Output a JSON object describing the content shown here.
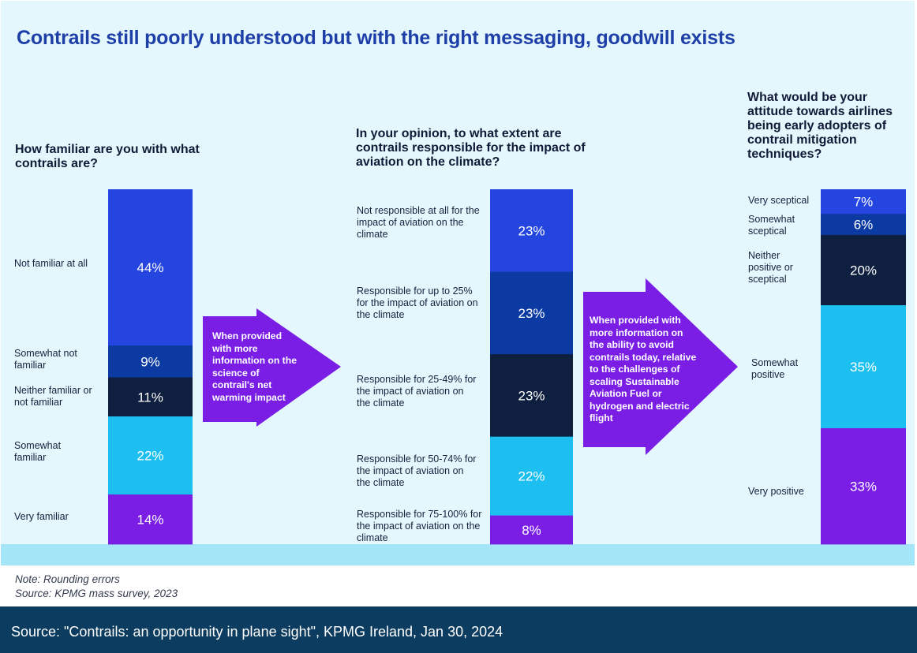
{
  "page": {
    "title": "Contrails still poorly understood but with the right messaging, goodwill exists",
    "arrow1_text": "When provided with more information on the science of contrail's net warming impact",
    "arrow2_text": "When provided with more information on the ability to avoid contrails today, relative to the challenges of scaling Sustainable Aviation Fuel or hydrogen and electric flight",
    "note": "Note: Rounding errors",
    "source_note": "Source: KPMG mass survey, 2023",
    "footer": "Source: \"Contrails: an opportunity in plane sight\", KPMG Ireland, Jan 30, 2024"
  },
  "chart_data": [
    {
      "type": "bar",
      "stacked": true,
      "title": "How familiar are you with what contrails are?",
      "categories": [
        "Not familiar at all",
        "Somewhat not familiar",
        "Neither familiar or not familiar",
        "Somewhat familiar",
        "Very familiar"
      ],
      "values": [
        44,
        9,
        11,
        22,
        14
      ],
      "data_labels": [
        "44%",
        "9%",
        "11%",
        "22%",
        "14%"
      ],
      "colors": [
        "#2545e0",
        "#0c3aa3",
        "#0f1f3f",
        "#1dbff0",
        "#7a1ee6"
      ]
    },
    {
      "type": "bar",
      "stacked": true,
      "title": "In your opinion, to what extent are contrails responsible for the impact of aviation on the climate?",
      "categories": [
        "Not responsible at all for the impact of aviation on the climate",
        "Responsible for up to 25% for the impact of aviation on the climate",
        "Responsible for 25-49% for the impact of aviation on the climate",
        "Responsible for 50-74% for the impact of aviation on the climate",
        "Responsible for 75-100% for the impact of aviation on the climate"
      ],
      "values": [
        23,
        23,
        23,
        22,
        8
      ],
      "data_labels": [
        "23%",
        "23%",
        "23%",
        "22%",
        "8%"
      ],
      "colors": [
        "#2545e0",
        "#0c3aa3",
        "#0f1f3f",
        "#1dbff0",
        "#7a1ee6"
      ]
    },
    {
      "type": "bar",
      "stacked": true,
      "title": "What would be your attitude towards airlines being early adopters of contrail mitigation techniques?",
      "categories": [
        "Very sceptical",
        "Somewhat sceptical",
        "Neither positive or sceptical",
        "Somewhat positive",
        "Very positive"
      ],
      "values": [
        7,
        6,
        20,
        35,
        33
      ],
      "data_labels": [
        "7%",
        "6%",
        "20%",
        "35%",
        "33%"
      ],
      "colors": [
        "#2545e0",
        "#0c3aa3",
        "#0f1f3f",
        "#1dbff0",
        "#7a1ee6"
      ]
    }
  ]
}
